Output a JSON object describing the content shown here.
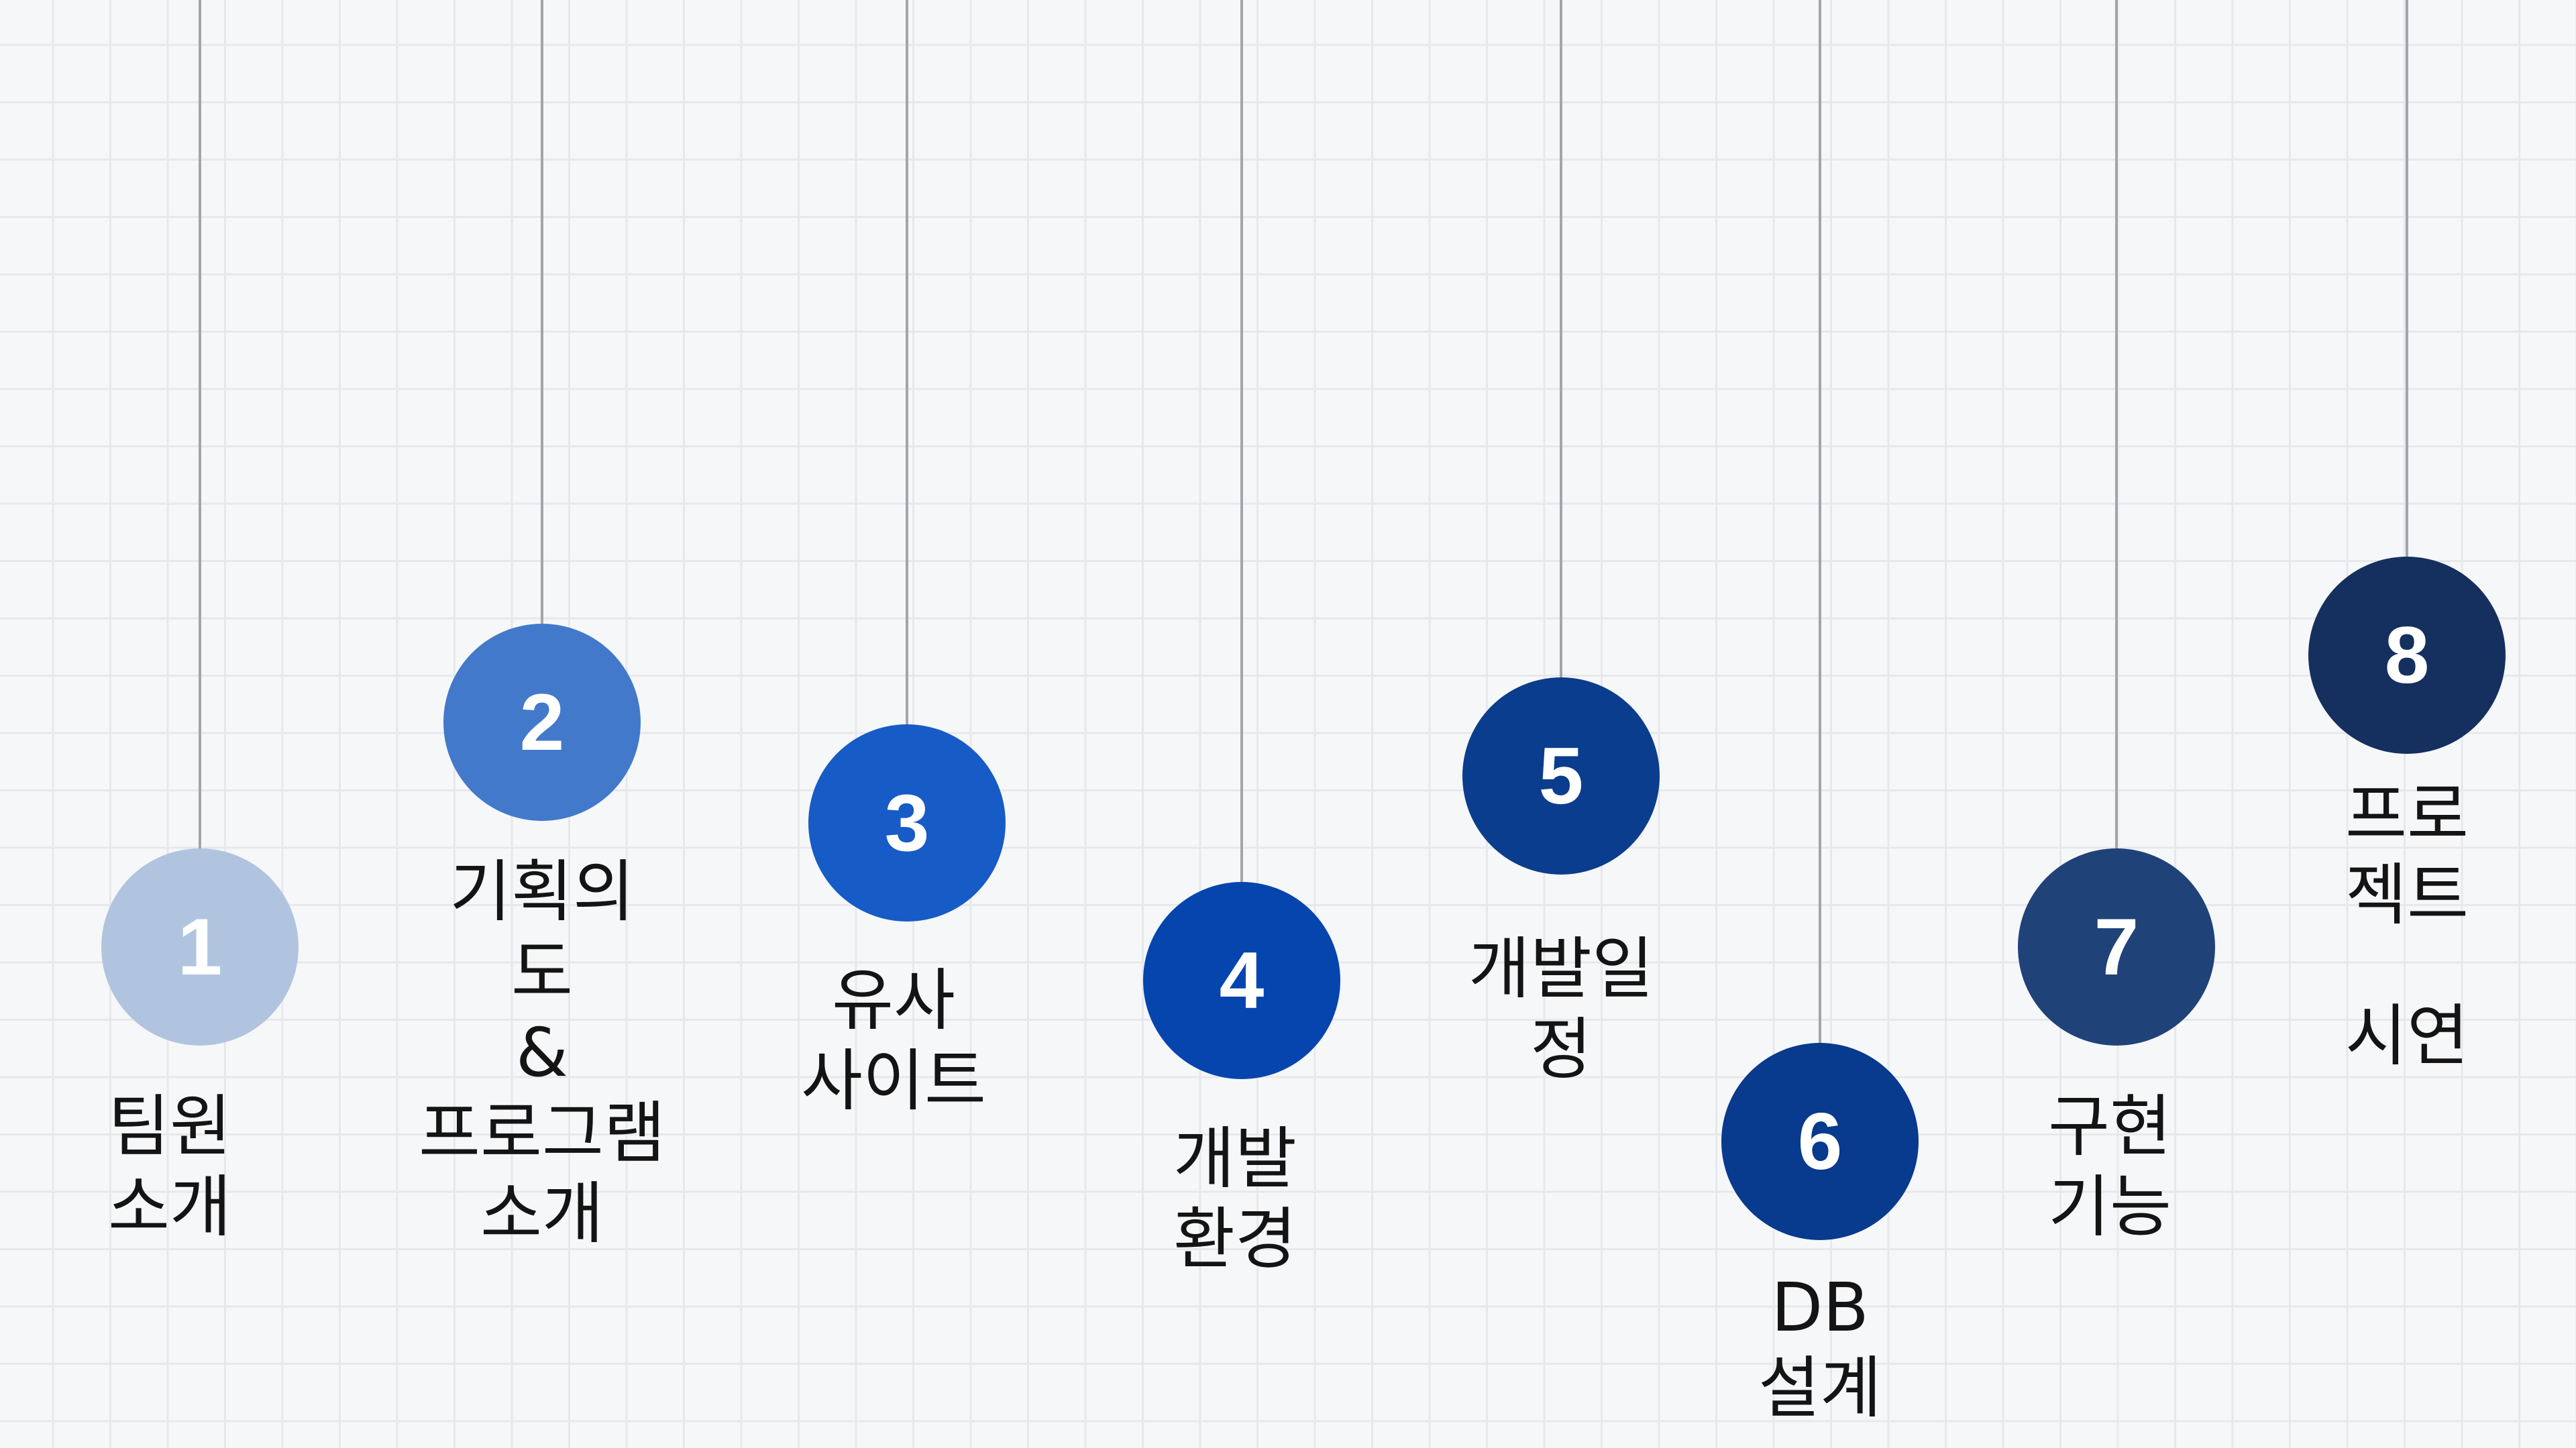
{
  "colors": {
    "step1": "#b1c4df",
    "step2": "#4279cb",
    "step3": "#175bc6",
    "step4": "#0645ae",
    "step5": "#0b3d8e",
    "step6": "#083a8d",
    "step7": "#1f4279",
    "step8": "#15305e",
    "number_text": "#ffffff",
    "label_text": "#141414",
    "string": "#a3a5a9"
  },
  "steps": [
    {
      "number": "1",
      "label_lines": [
        "팀원",
        "소개"
      ]
    },
    {
      "number": "2",
      "label_lines": [
        "기획의",
        "도",
        "&",
        "프로그램",
        "소개"
      ]
    },
    {
      "number": "3",
      "label_lines": [
        "유사",
        "사이트"
      ]
    },
    {
      "number": "4",
      "label_lines": [
        "개발",
        "환경"
      ]
    },
    {
      "number": "5",
      "label_lines": [
        "개발일",
        "정"
      ]
    },
    {
      "number": "6",
      "label_lines": [
        "DB",
        "설계"
      ]
    },
    {
      "number": "7",
      "label_lines": [
        "구현",
        "기능"
      ]
    },
    {
      "number": "8",
      "label_lines": [
        "프로",
        "젝트",
        "시연"
      ]
    }
  ]
}
